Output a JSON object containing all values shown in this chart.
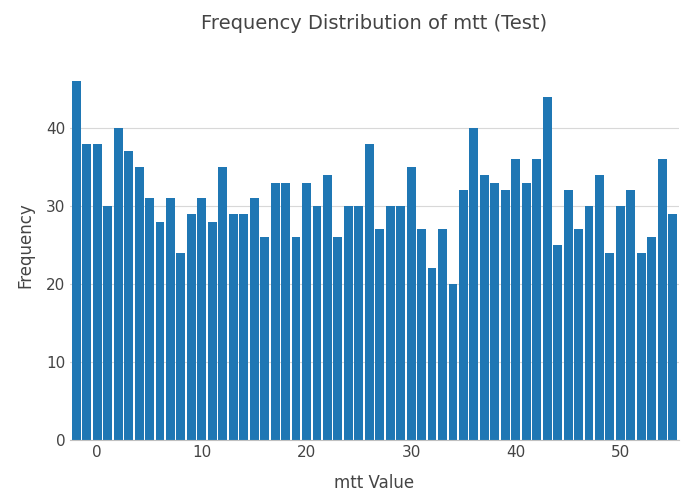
{
  "title": "Frequency Distribution of mtt (Test)",
  "xlabel": "mtt Value",
  "ylabel": "Frequency",
  "bar_color": "#1f77b4",
  "background_color": "#ffffff",
  "plot_background": "#ffffff",
  "grid_color": "#d8d8d8",
  "ylim": [
    0,
    50
  ],
  "yticks": [
    0,
    10,
    20,
    30,
    40
  ],
  "xticks": [
    0,
    10,
    20,
    30,
    40,
    50
  ],
  "categories": [
    -2,
    -1,
    0,
    1,
    2,
    3,
    4,
    5,
    6,
    7,
    8,
    9,
    10,
    11,
    12,
    13,
    14,
    15,
    16,
    17,
    18,
    19,
    20,
    21,
    22,
    23,
    24,
    25,
    26,
    27,
    28,
    29,
    30,
    31,
    32,
    33,
    34,
    35,
    36,
    37,
    38,
    39,
    40,
    41,
    42,
    43,
    44,
    45,
    46,
    47,
    48,
    49,
    50,
    51,
    52,
    53,
    54,
    55
  ],
  "values": [
    46,
    38,
    38,
    30,
    40,
    37,
    35,
    31,
    28,
    31,
    24,
    29,
    31,
    28,
    35,
    29,
    29,
    31,
    26,
    33,
    33,
    26,
    33,
    30,
    34,
    26,
    30,
    30,
    38,
    27,
    30,
    30,
    35,
    27,
    22,
    27,
    20,
    32,
    40,
    34,
    33,
    32,
    36,
    33,
    36,
    44,
    25,
    32,
    27,
    30,
    34,
    24,
    30,
    32,
    24,
    26,
    36,
    29
  ],
  "title_fontsize": 14,
  "axis_fontsize": 12,
  "tick_fontsize": 11,
  "title_color": "#444444",
  "axis_color": "#444444",
  "tick_color": "#444444",
  "spine_color": "#c0c0c0",
  "bar_width": 0.85
}
